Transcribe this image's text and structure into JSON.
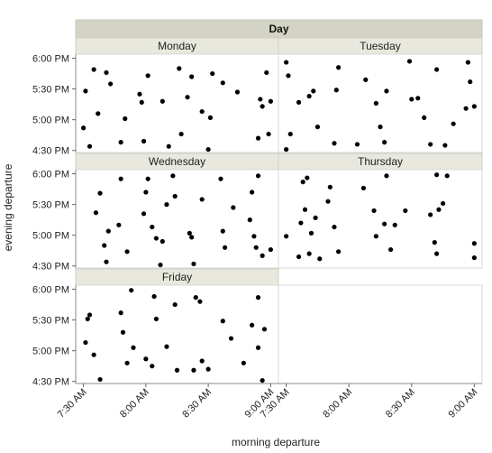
{
  "chart_data": {
    "type": "scatter",
    "group_title": "Day",
    "xlabel": "morning departure",
    "ylabel": "evening departure",
    "x_ticks": [
      "7:30 AM",
      "8:00 AM",
      "8:30 AM",
      "9:00 AM"
    ],
    "y_ticks": [
      "4:30 PM",
      "5:00 PM",
      "5:30 PM",
      "6:00 PM"
    ],
    "xlim": [
      "7:28 AM",
      "9:02 AM"
    ],
    "ylim": [
      "4:28 PM",
      "6:04 PM"
    ],
    "grid": false,
    "marker_color": "#000000",
    "panel_title_bg": "#e8e8de",
    "panels": [
      {
        "name": "Monday",
        "points": [
          {
            "x": "7:30 AM",
            "y": "4:52 PM"
          },
          {
            "x": "7:31 AM",
            "y": "5:28 PM"
          },
          {
            "x": "7:33 AM",
            "y": "4:34 PM"
          },
          {
            "x": "7:35 AM",
            "y": "5:49 PM"
          },
          {
            "x": "7:37 AM",
            "y": "5:06 PM"
          },
          {
            "x": "7:41 AM",
            "y": "5:46 PM"
          },
          {
            "x": "7:43 AM",
            "y": "5:35 PM"
          },
          {
            "x": "7:48 AM",
            "y": "4:38 PM"
          },
          {
            "x": "7:50 AM",
            "y": "5:01 PM"
          },
          {
            "x": "7:57 AM",
            "y": "5:25 PM"
          },
          {
            "x": "7:58 AM",
            "y": "5:17 PM"
          },
          {
            "x": "7:59 AM",
            "y": "4:39 PM"
          },
          {
            "x": "8:01 AM",
            "y": "5:43 PM"
          },
          {
            "x": "8:08 AM",
            "y": "5:18 PM"
          },
          {
            "x": "8:11 AM",
            "y": "4:34 PM"
          },
          {
            "x": "8:16 AM",
            "y": "5:50 PM"
          },
          {
            "x": "8:17 AM",
            "y": "4:46 PM"
          },
          {
            "x": "8:20 AM",
            "y": "5:22 PM"
          },
          {
            "x": "8:22 AM",
            "y": "5:42 PM"
          },
          {
            "x": "8:27 AM",
            "y": "5:08 PM"
          },
          {
            "x": "8:30 AM",
            "y": "4:31 PM"
          },
          {
            "x": "8:31 AM",
            "y": "5:02 PM"
          },
          {
            "x": "8:32 AM",
            "y": "5:45 PM"
          },
          {
            "x": "8:37 AM",
            "y": "5:36 PM"
          },
          {
            "x": "8:44 AM",
            "y": "5:27 PM"
          },
          {
            "x": "8:54 AM",
            "y": "4:42 PM"
          },
          {
            "x": "8:55 AM",
            "y": "5:20 PM"
          },
          {
            "x": "8:56 AM",
            "y": "5:13 PM"
          },
          {
            "x": "8:58 AM",
            "y": "5:46 PM"
          },
          {
            "x": "8:59 AM",
            "y": "4:46 PM"
          },
          {
            "x": "9:00 AM",
            "y": "5:18 PM"
          }
        ]
      },
      {
        "name": "Tuesday",
        "points": [
          {
            "x": "7:30 AM",
            "y": "5:56 PM"
          },
          {
            "x": "7:30 AM",
            "y": "4:31 PM"
          },
          {
            "x": "7:31 AM",
            "y": "5:43 PM"
          },
          {
            "x": "7:32 AM",
            "y": "4:46 PM"
          },
          {
            "x": "7:36 AM",
            "y": "5:17 PM"
          },
          {
            "x": "7:41 AM",
            "y": "5:23 PM"
          },
          {
            "x": "7:43 AM",
            "y": "5:28 PM"
          },
          {
            "x": "7:45 AM",
            "y": "4:53 PM"
          },
          {
            "x": "7:53 AM",
            "y": "4:37 PM"
          },
          {
            "x": "7:54 AM",
            "y": "5:29 PM"
          },
          {
            "x": "7:55 AM",
            "y": "5:51 PM"
          },
          {
            "x": "8:04 AM",
            "y": "4:36 PM"
          },
          {
            "x": "8:08 AM",
            "y": "5:39 PM"
          },
          {
            "x": "8:13 AM",
            "y": "5:16 PM"
          },
          {
            "x": "8:15 AM",
            "y": "4:53 PM"
          },
          {
            "x": "8:17 AM",
            "y": "4:38 PM"
          },
          {
            "x": "8:18 AM",
            "y": "5:28 PM"
          },
          {
            "x": "8:29 AM",
            "y": "5:57 PM"
          },
          {
            "x": "8:30 AM",
            "y": "5:20 PM"
          },
          {
            "x": "8:33 AM",
            "y": "5:21 PM"
          },
          {
            "x": "8:36 AM",
            "y": "5:02 PM"
          },
          {
            "x": "8:39 AM",
            "y": "4:36 PM"
          },
          {
            "x": "8:42 AM",
            "y": "5:49 PM"
          },
          {
            "x": "8:46 AM",
            "y": "4:35 PM"
          },
          {
            "x": "8:50 AM",
            "y": "4:56 PM"
          },
          {
            "x": "8:56 AM",
            "y": "5:11 PM"
          },
          {
            "x": "8:57 AM",
            "y": "5:56 PM"
          },
          {
            "x": "8:58 AM",
            "y": "5:37 PM"
          },
          {
            "x": "9:00 AM",
            "y": "5:13 PM"
          }
        ]
      },
      {
        "name": "Wednesday",
        "points": [
          {
            "x": "7:36 AM",
            "y": "5:22 PM"
          },
          {
            "x": "7:38 AM",
            "y": "5:41 PM"
          },
          {
            "x": "7:40 AM",
            "y": "4:50 PM"
          },
          {
            "x": "7:41 AM",
            "y": "4:34 PM"
          },
          {
            "x": "7:42 AM",
            "y": "5:04 PM"
          },
          {
            "x": "7:47 AM",
            "y": "5:10 PM"
          },
          {
            "x": "7:48 AM",
            "y": "5:55 PM"
          },
          {
            "x": "7:51 AM",
            "y": "4:44 PM"
          },
          {
            "x": "7:59 AM",
            "y": "5:21 PM"
          },
          {
            "x": "7:60 AM",
            "y": "5:42 PM"
          },
          {
            "x": "8:01 AM",
            "y": "5:55 PM"
          },
          {
            "x": "8:03 AM",
            "y": "5:08 PM"
          },
          {
            "x": "8:05 AM",
            "y": "4:57 PM"
          },
          {
            "x": "8:07 AM",
            "y": "4:31 PM"
          },
          {
            "x": "8:08 AM",
            "y": "4:54 PM"
          },
          {
            "x": "8:10 AM",
            "y": "5:30 PM"
          },
          {
            "x": "8:13 AM",
            "y": "5:58 PM"
          },
          {
            "x": "8:14 AM",
            "y": "5:38 PM"
          },
          {
            "x": "8:21 AM",
            "y": "5:02 PM"
          },
          {
            "x": "8:22 AM",
            "y": "4:58 PM"
          },
          {
            "x": "8:23 AM",
            "y": "4:32 PM"
          },
          {
            "x": "8:27 AM",
            "y": "5:35 PM"
          },
          {
            "x": "8:36 AM",
            "y": "5:55 PM"
          },
          {
            "x": "8:37 AM",
            "y": "5:04 PM"
          },
          {
            "x": "8:38 AM",
            "y": "4:48 PM"
          },
          {
            "x": "8:42 AM",
            "y": "5:27 PM"
          },
          {
            "x": "8:50 AM",
            "y": "5:15 PM"
          },
          {
            "x": "8:51 AM",
            "y": "5:42 PM"
          },
          {
            "x": "8:52 AM",
            "y": "4:59 PM"
          },
          {
            "x": "8:53 AM",
            "y": "4:48 PM"
          },
          {
            "x": "8:54 AM",
            "y": "5:58 PM"
          },
          {
            "x": "8:56 AM",
            "y": "4:40 PM"
          },
          {
            "x": "9:00 AM",
            "y": "4:46 PM"
          }
        ]
      },
      {
        "name": "Thursday",
        "points": [
          {
            "x": "7:30 AM",
            "y": "4:59 PM"
          },
          {
            "x": "7:36 AM",
            "y": "4:39 PM"
          },
          {
            "x": "7:37 AM",
            "y": "5:12 PM"
          },
          {
            "x": "7:38 AM",
            "y": "5:52 PM"
          },
          {
            "x": "7:39 AM",
            "y": "5:25 PM"
          },
          {
            "x": "7:40 AM",
            "y": "5:56 PM"
          },
          {
            "x": "7:41 AM",
            "y": "4:42 PM"
          },
          {
            "x": "7:42 AM",
            "y": "5:02 PM"
          },
          {
            "x": "7:44 AM",
            "y": "5:17 PM"
          },
          {
            "x": "7:46 AM",
            "y": "4:37 PM"
          },
          {
            "x": "7:50 AM",
            "y": "5:33 PM"
          },
          {
            "x": "7:51 AM",
            "y": "5:47 PM"
          },
          {
            "x": "7:53 AM",
            "y": "5:08 PM"
          },
          {
            "x": "7:55 AM",
            "y": "4:44 PM"
          },
          {
            "x": "8:07 AM",
            "y": "5:46 PM"
          },
          {
            "x": "8:12 AM",
            "y": "5:24 PM"
          },
          {
            "x": "8:13 AM",
            "y": "4:59 PM"
          },
          {
            "x": "8:17 AM",
            "y": "5:11 PM"
          },
          {
            "x": "8:18 AM",
            "y": "5:58 PM"
          },
          {
            "x": "8:20 AM",
            "y": "4:46 PM"
          },
          {
            "x": "8:22 AM",
            "y": "5:10 PM"
          },
          {
            "x": "8:27 AM",
            "y": "5:24 PM"
          },
          {
            "x": "8:39 AM",
            "y": "5:20 PM"
          },
          {
            "x": "8:41 AM",
            "y": "4:53 PM"
          },
          {
            "x": "8:42 AM",
            "y": "5:59 PM"
          },
          {
            "x": "8:42 AM",
            "y": "4:42 PM"
          },
          {
            "x": "8:43 AM",
            "y": "5:25 PM"
          },
          {
            "x": "8:45 AM",
            "y": "5:31 PM"
          },
          {
            "x": "8:47 AM",
            "y": "5:58 PM"
          },
          {
            "x": "9:00 AM",
            "y": "4:52 PM"
          },
          {
            "x": "9:00 AM",
            "y": "4:38 PM"
          }
        ]
      },
      {
        "name": "Friday",
        "points": [
          {
            "x": "7:31 AM",
            "y": "5:08 PM"
          },
          {
            "x": "7:32 AM",
            "y": "5:31 PM"
          },
          {
            "x": "7:33 AM",
            "y": "5:35 PM"
          },
          {
            "x": "7:35 AM",
            "y": "4:56 PM"
          },
          {
            "x": "7:38 AM",
            "y": "4:32 PM"
          },
          {
            "x": "7:48 AM",
            "y": "5:37 PM"
          },
          {
            "x": "7:49 AM",
            "y": "5:18 PM"
          },
          {
            "x": "7:51 AM",
            "y": "4:48 PM"
          },
          {
            "x": "7:53 AM",
            "y": "5:59 PM"
          },
          {
            "x": "7:54 AM",
            "y": "5:03 PM"
          },
          {
            "x": "7:60 AM",
            "y": "4:52 PM"
          },
          {
            "x": "8:03 AM",
            "y": "4:45 PM"
          },
          {
            "x": "8:04 AM",
            "y": "5:53 PM"
          },
          {
            "x": "8:05 AM",
            "y": "5:31 PM"
          },
          {
            "x": "8:10 AM",
            "y": "5:04 PM"
          },
          {
            "x": "8:14 AM",
            "y": "5:45 PM"
          },
          {
            "x": "8:15 AM",
            "y": "4:41 PM"
          },
          {
            "x": "8:23 AM",
            "y": "4:41 PM"
          },
          {
            "x": "8:24 AM",
            "y": "5:52 PM"
          },
          {
            "x": "8:26 AM",
            "y": "5:48 PM"
          },
          {
            "x": "8:27 AM",
            "y": "4:50 PM"
          },
          {
            "x": "8:30 AM",
            "y": "4:42 PM"
          },
          {
            "x": "8:37 AM",
            "y": "5:29 PM"
          },
          {
            "x": "8:41 AM",
            "y": "5:12 PM"
          },
          {
            "x": "8:47 AM",
            "y": "4:48 PM"
          },
          {
            "x": "8:51 AM",
            "y": "5:25 PM"
          },
          {
            "x": "8:54 AM",
            "y": "5:03 PM"
          },
          {
            "x": "8:54 AM",
            "y": "5:52 PM"
          },
          {
            "x": "8:56 AM",
            "y": "4:31 PM"
          },
          {
            "x": "8:57 AM",
            "y": "5:21 PM"
          }
        ]
      }
    ]
  }
}
